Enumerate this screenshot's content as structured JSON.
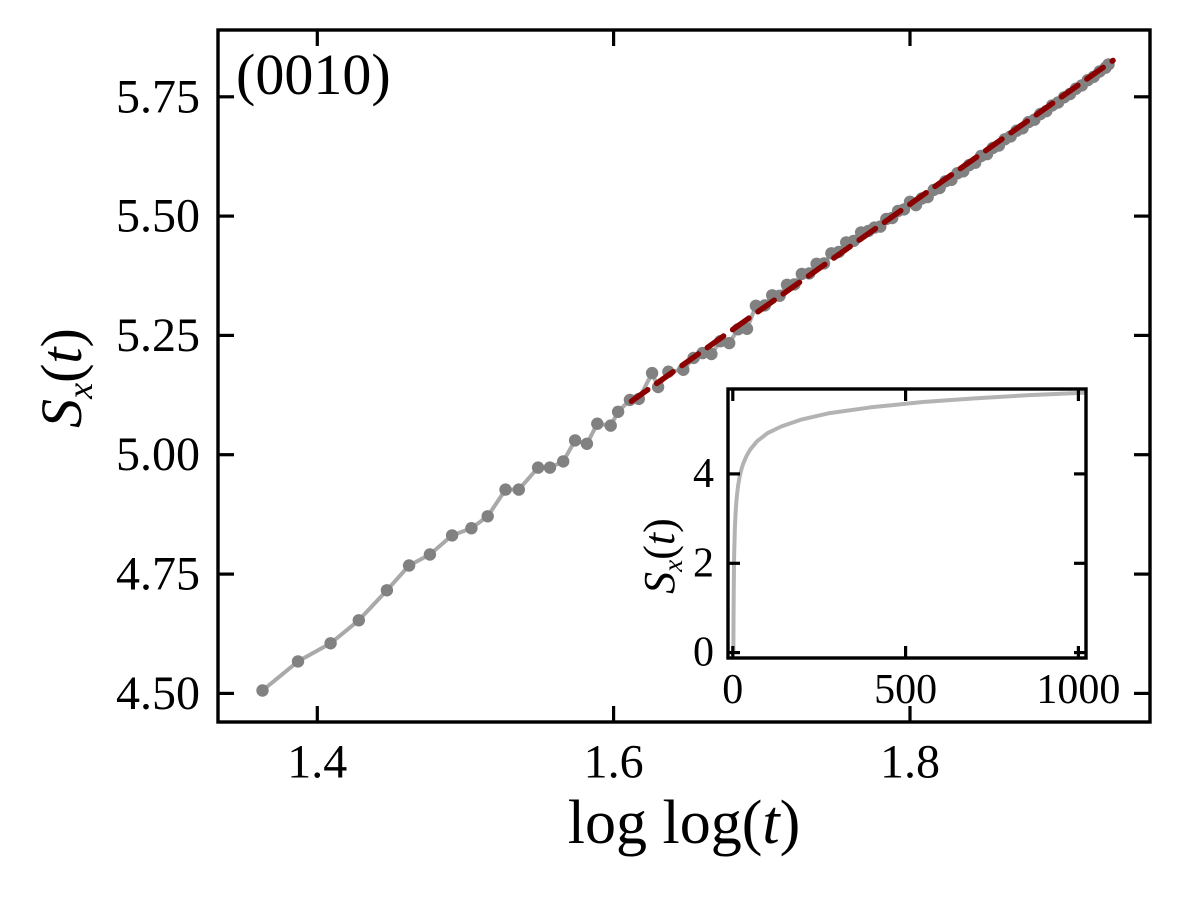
{
  "figure": {
    "background": "#ffffff",
    "axis_color": "#000000"
  },
  "chart_data": [
    {
      "name": "main",
      "type": "line",
      "title": "",
      "annotation": "(0010)",
      "xlabel": "log log(t)",
      "ylabel": "S_x(t)",
      "xlabel_parts": [
        {
          "text": "log log(",
          "italic": false
        },
        {
          "text": "t",
          "italic": true
        },
        {
          "text": ")",
          "italic": false
        }
      ],
      "ylabel_parts": [
        {
          "text": "S",
          "italic": true
        },
        {
          "text": "x",
          "italic": true,
          "subscript": true
        },
        {
          "text": "(",
          "italic": false
        },
        {
          "text": "t",
          "italic": true
        },
        {
          "text": ")",
          "italic": false
        }
      ],
      "xlim": [
        1.333,
        1.962
      ],
      "ylim": [
        4.44,
        5.89
      ],
      "grid": false,
      "legend": null,
      "ticks_direction": "in",
      "xticks": {
        "values": [
          1.4,
          1.6,
          1.8
        ],
        "labels": [
          "1.4",
          "1.6",
          "1.8"
        ]
      },
      "yticks": {
        "values": [
          4.5,
          4.75,
          5.0,
          5.25,
          5.5,
          5.75
        ],
        "labels": [
          "4.50",
          "4.75",
          "5.00",
          "5.25",
          "5.50",
          "5.75"
        ]
      },
      "series": [
        {
          "name": "entropy-vs-loglog-t",
          "type": "scatter-line",
          "line_color": "#a9a9a9",
          "marker_color": "#818181",
          "marker_size": 6.2,
          "line_width": 4,
          "points": [
            [
              1.363,
              4.506
            ],
            [
              1.387,
              4.567
            ],
            [
              1.409,
              4.605
            ],
            [
              1.428,
              4.653
            ],
            [
              1.447,
              4.716
            ],
            [
              1.462,
              4.768
            ],
            [
              1.476,
              4.791
            ],
            [
              1.491,
              4.831
            ],
            [
              1.504,
              4.846
            ],
            [
              1.515,
              4.871
            ],
            [
              1.527,
              4.927
            ],
            [
              1.536,
              4.927
            ],
            [
              1.549,
              4.973
            ],
            [
              1.557,
              4.973
            ],
            [
              1.566,
              4.986
            ],
            [
              1.574,
              5.03
            ],
            [
              1.582,
              5.023
            ],
            [
              1.589,
              5.065
            ],
            [
              1.598,
              5.061
            ],
            [
              1.603,
              5.09
            ],
            [
              1.611,
              5.115
            ],
            [
              1.617,
              5.117
            ],
            [
              1.626,
              5.171
            ],
            [
              1.63,
              5.142
            ],
            [
              1.637,
              5.174
            ],
            [
              1.647,
              5.178
            ],
            [
              1.654,
              5.203
            ],
            [
              1.66,
              5.213
            ],
            [
              1.666,
              5.211
            ],
            [
              1.672,
              5.238
            ],
            [
              1.678,
              5.234
            ],
            [
              1.684,
              5.263
            ],
            [
              1.69,
              5.264
            ],
            [
              1.696,
              5.312
            ],
            [
              1.702,
              5.313
            ],
            [
              1.707,
              5.334
            ],
            [
              1.712,
              5.333
            ],
            [
              1.717,
              5.356
            ],
            [
              1.722,
              5.357
            ],
            [
              1.727,
              5.379
            ],
            [
              1.732,
              5.38
            ],
            [
              1.737,
              5.4
            ],
            [
              1.742,
              5.401
            ],
            [
              1.747,
              5.422
            ],
            [
              1.752,
              5.425
            ],
            [
              1.757,
              5.445
            ],
            [
              1.762,
              5.448
            ],
            [
              1.767,
              5.466
            ],
            [
              1.772,
              5.469
            ],
            [
              1.776,
              5.476
            ],
            [
              1.78,
              5.478
            ],
            [
              1.784,
              5.494
            ],
            [
              1.788,
              5.496
            ],
            [
              1.792,
              5.511
            ],
            [
              1.796,
              5.514
            ],
            [
              1.8,
              5.53
            ],
            [
              1.804,
              5.523
            ],
            [
              1.808,
              5.537
            ],
            [
              1.812,
              5.54
            ],
            [
              1.816,
              5.555
            ],
            [
              1.82,
              5.559
            ],
            [
              1.824,
              5.573
            ],
            [
              1.828,
              5.576
            ],
            [
              1.832,
              5.59
            ],
            [
              1.836,
              5.594
            ],
            [
              1.84,
              5.607
            ],
            [
              1.844,
              5.612
            ],
            [
              1.848,
              5.626
            ],
            [
              1.852,
              5.63
            ],
            [
              1.856,
              5.643
            ],
            [
              1.86,
              5.648
            ],
            [
              1.864,
              5.661
            ],
            [
              1.868,
              5.667
            ],
            [
              1.872,
              5.679
            ],
            [
              1.876,
              5.684
            ],
            [
              1.88,
              5.697
            ],
            [
              1.884,
              5.702
            ],
            [
              1.888,
              5.714
            ],
            [
              1.892,
              5.72
            ],
            [
              1.896,
              5.732
            ],
            [
              1.9,
              5.738
            ],
            [
              1.904,
              5.749
            ],
            [
              1.908,
              5.756
            ],
            [
              1.912,
              5.767
            ],
            [
              1.916,
              5.774
            ],
            [
              1.92,
              5.785
            ],
            [
              1.924,
              5.792
            ],
            [
              1.928,
              5.803
            ],
            [
              1.932,
              5.811
            ],
            [
              1.934,
              5.818
            ]
          ]
        },
        {
          "name": "linear-fit",
          "type": "dashed-line",
          "color": "#8b0000",
          "line_width": 5.5,
          "dash": [
            20,
            11
          ],
          "points": [
            [
              1.612,
              5.112
            ],
            [
              1.937,
              5.826
            ]
          ]
        }
      ]
    },
    {
      "name": "inset",
      "type": "line",
      "title": "",
      "xlabel": "",
      "ylabel": "S_x(t)",
      "ylabel_parts": [
        {
          "text": "S",
          "italic": true
        },
        {
          "text": "x",
          "italic": true,
          "subscript": true
        },
        {
          "text": "(",
          "italic": false
        },
        {
          "text": "t",
          "italic": true
        },
        {
          "text": ")",
          "italic": false
        }
      ],
      "xlim": [
        -14,
        1022
      ],
      "ylim": [
        -0.12,
        5.9
      ],
      "grid": false,
      "legend": null,
      "ticks_direction": "in",
      "xticks": {
        "values": [
          0,
          500,
          1000
        ],
        "labels": [
          "0",
          "500",
          "1000"
        ]
      },
      "yticks": {
        "values": [
          0,
          2,
          4
        ],
        "labels": [
          "0",
          "2",
          "4"
        ]
      },
      "series": [
        {
          "name": "entropy-vs-time",
          "type": "line",
          "color": "#b3b3b3",
          "line_width": 4,
          "points": [
            [
              1.7,
              0.05
            ],
            [
              2,
              0.68
            ],
            [
              2.5,
              1.3
            ],
            [
              3,
              1.71
            ],
            [
              3.5,
              2.0
            ],
            [
              4,
              2.23
            ],
            [
              5,
              2.56
            ],
            [
              6,
              2.8
            ],
            [
              7,
              2.98
            ],
            [
              8,
              3.13
            ],
            [
              10,
              3.36
            ],
            [
              12,
              3.53
            ],
            [
              15,
              3.72
            ],
            [
              20,
              3.95
            ],
            [
              25,
              4.11
            ],
            [
              30,
              4.23
            ],
            [
              40,
              4.41
            ],
            [
              50,
              4.54
            ],
            [
              70,
              4.73
            ],
            [
              100,
              4.91
            ],
            [
              140,
              5.06
            ],
            [
              200,
              5.22
            ],
            [
              280,
              5.36
            ],
            [
              400,
              5.49
            ],
            [
              550,
              5.61
            ],
            [
              700,
              5.69
            ],
            [
              850,
              5.76
            ],
            [
              1000,
              5.81
            ],
            [
              1020,
              5.82
            ]
          ]
        }
      ]
    }
  ]
}
